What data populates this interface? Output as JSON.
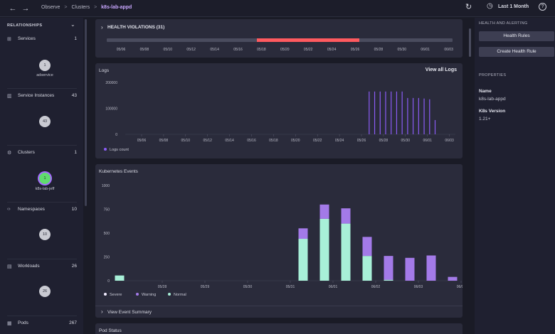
{
  "nav": {
    "back_icon": "←",
    "forward_icon": "→"
  },
  "breadcrumb": {
    "items": [
      "Observe",
      "Clusters"
    ],
    "current": "k8s-lab-appd",
    "separator": ">"
  },
  "toolbar": {
    "refresh_icon": "↻",
    "clock_icon": "◷",
    "time_range": "Last 1 Month",
    "help_icon": "?"
  },
  "relationships": {
    "title": "RELATIONSHIPS",
    "collapse_icon": "⌄",
    "items": [
      {
        "label": "Services",
        "count": "1",
        "icon": "⊞",
        "bubble": "1",
        "sub": "adservice"
      },
      {
        "label": "Service Instances",
        "count": "43",
        "icon": "▥",
        "bubble": "43",
        "sub": ""
      },
      {
        "label": "Clusters",
        "count": "1",
        "icon": "⚙",
        "bubble": "1",
        "sub": "k8s-lab-jeff"
      },
      {
        "label": "Namespaces",
        "count": "10",
        "icon": "‹›",
        "bubble": "10",
        "sub": ""
      },
      {
        "label": "Workloads",
        "count": "26",
        "icon": "▤",
        "bubble": "26",
        "sub": ""
      },
      {
        "label": "Pods",
        "count": "267",
        "icon": "▦",
        "bubble": "",
        "sub": ""
      }
    ]
  },
  "health_violations": {
    "title": "HEALTH VIOLATIONS (31)",
    "toggle_icon": "›",
    "ticks": [
      "05/06",
      "05/08",
      "05/10",
      "05/12",
      "05/14",
      "05/16",
      "05/18",
      "05/20",
      "05/22",
      "05/24",
      "05/26",
      "05/28",
      "05/30",
      "06/01",
      "06/03"
    ],
    "violation_start_fraction": 0.434,
    "violation_end_fraction": 0.73,
    "violation_color": "#ff5a5f"
  },
  "logs": {
    "title": "Logs",
    "link": "View all Logs",
    "chart_data": {
      "type": "bar",
      "y_ticks": [
        "200000",
        "100000",
        "0"
      ],
      "ylim": [
        0,
        200000
      ],
      "x_ticks": [
        "05/06",
        "05/08",
        "05/10",
        "05/12",
        "05/14",
        "05/16",
        "05/18",
        "05/20",
        "05/22",
        "05/24",
        "05/26",
        "05/28",
        "05/30",
        "06/01",
        "06/03"
      ],
      "series": [
        {
          "name": "Logs count",
          "color": "#8b5cf6",
          "points": [
            {
              "x": "05/26.7",
              "value": 165000
            },
            {
              "x": "05/27.2",
              "value": 165000
            },
            {
              "x": "05/27.7",
              "value": 165000
            },
            {
              "x": "05/28.2",
              "value": 165000
            },
            {
              "x": "05/28.7",
              "value": 165000
            },
            {
              "x": "05/29.2",
              "value": 165000
            },
            {
              "x": "05/29.7",
              "value": 165000
            },
            {
              "x": "05/30.2",
              "value": 140000
            },
            {
              "x": "05/30.7",
              "value": 140000
            },
            {
              "x": "05/31.2",
              "value": 140000
            },
            {
              "x": "05/31.7",
              "value": 138000
            },
            {
              "x": "06/01.2",
              "value": 135000
            },
            {
              "x": "06/01.7",
              "value": 55000
            }
          ]
        }
      ],
      "legend": "bottom-left"
    }
  },
  "k8s_events": {
    "title": "Kubernetes Events",
    "footer": "View Event Summary",
    "footer_icon": "›",
    "chart_data": {
      "type": "bar",
      "stacked": true,
      "y_ticks": [
        "1000",
        "750",
        "500",
        "250",
        "0"
      ],
      "ylim": [
        0,
        1000
      ],
      "x_ticks": [
        "05/28",
        "05/29",
        "05/30",
        "05/31",
        "06/01",
        "06/02",
        "06/03",
        "06/04"
      ],
      "categories": [
        "05/27",
        "05/31.3",
        "05/31.8",
        "06/01.3",
        "06/01.8",
        "06/02.3",
        "06/02.8",
        "06/03.3",
        "06/03.8"
      ],
      "series": [
        {
          "name": "Normal",
          "color": "#a8f0d8",
          "values": [
            55,
            440,
            650,
            600,
            260,
            10,
            0,
            0,
            0
          ]
        },
        {
          "name": "Warning",
          "color": "#a37ae8",
          "values": [
            0,
            110,
            150,
            160,
            200,
            250,
            240,
            265,
            40
          ]
        },
        {
          "name": "Severe",
          "color": "#f1ecff",
          "values": [
            0,
            0,
            0,
            0,
            0,
            0,
            0,
            0,
            0
          ]
        }
      ],
      "legend_order": [
        "Severe",
        "Warning",
        "Normal"
      ],
      "legend": "bottom-left"
    }
  },
  "pod_status": {
    "title": "Pod Status"
  },
  "right_panel": {
    "health_title": "HEALTH AND ALERTING",
    "health_rules_button": "Health Rules",
    "create_rule_button": "Create Health Rule",
    "properties_title": "PROPERTIES",
    "name_label": "Name",
    "name_value": "k8s-lab-appd",
    "version_label": "K8s Version",
    "version_value": "1.21+"
  }
}
